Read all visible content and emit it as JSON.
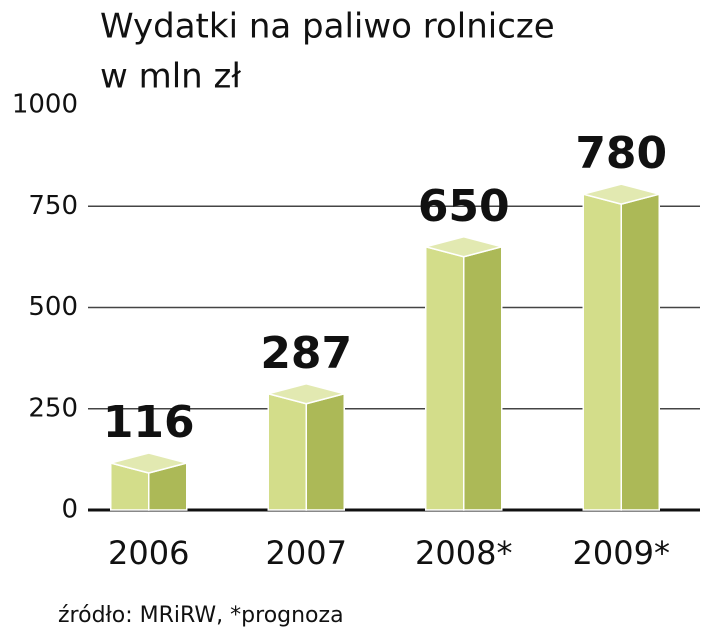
{
  "chart_data": {
    "type": "bar3d",
    "title": "Wydatki na paliwo rolnicze",
    "subtitle": "w mln zł",
    "categories": [
      "2006",
      "2007",
      "2008*",
      "2009*"
    ],
    "values": [
      116,
      287,
      650,
      780
    ],
    "color": "#c4d263",
    "ylim": [
      0,
      1000
    ],
    "yticks": [
      0,
      250,
      500,
      750,
      1000
    ],
    "grid": true,
    "source": "źródło: MRiRW, *prognoza"
  }
}
